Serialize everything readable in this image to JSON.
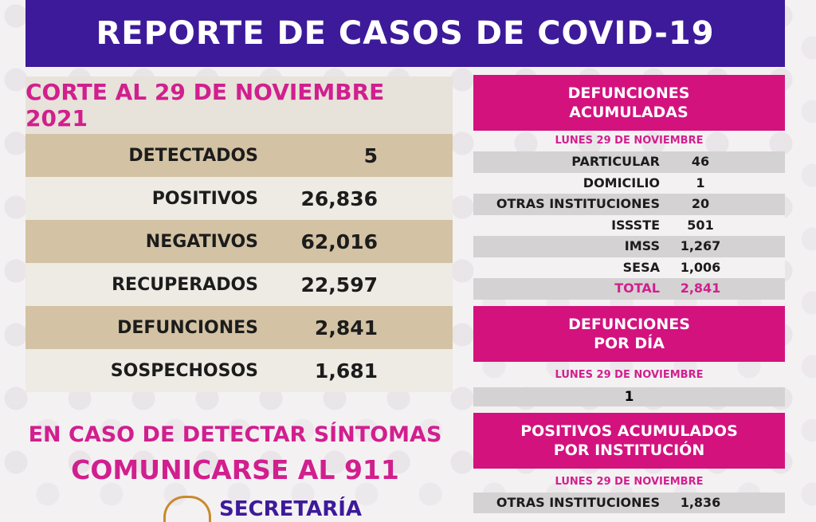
{
  "title": "REPORTE DE CASOS DE COVID-19",
  "corte": "CORTE AL 29 DE NOVIEMBRE 2021",
  "stats": [
    {
      "label": "DETECTADOS",
      "value": "5"
    },
    {
      "label": "POSITIVOS",
      "value": "26,836"
    },
    {
      "label": "NEGATIVOS",
      "value": "62,016"
    },
    {
      "label": "RECUPERADOS",
      "value": "22,597"
    },
    {
      "label": "DEFUNCIONES",
      "value": "2,841"
    },
    {
      "label": "SOSPECHOSOS",
      "value": "1,681"
    }
  ],
  "cta": {
    "line1": "EN CASO DE DETECTAR SÍNTOMAS",
    "line2": "COMUNICARSE AL 911"
  },
  "footer_logo_text": "SECRETARÍA",
  "defunciones_acumuladas": {
    "header": "DEFUNCIONES ACUMULADAS",
    "date": "LUNES 29 DE NOVIEMBRE",
    "rows": [
      {
        "label": "PARTICULAR",
        "value": "46"
      },
      {
        "label": "DOMICILIO",
        "value": "1"
      },
      {
        "label": "OTRAS INSTITUCIONES",
        "value": "20"
      },
      {
        "label": "ISSSTE",
        "value": "501"
      },
      {
        "label": "IMSS",
        "value": "1,267"
      },
      {
        "label": "SESA",
        "value": "1,006"
      },
      {
        "label": "TOTAL",
        "value": "2,841"
      }
    ]
  },
  "defunciones_dia": {
    "header": "DEFUNCIONES POR DÍA",
    "date": "LUNES 29 DE NOVIEMBRE",
    "value": "1"
  },
  "positivos_institucion": {
    "header": "POSITIVOS ACUMULADOS POR INSTITUCIÓN",
    "date": "LUNES 29 DE NOVIEMBRE",
    "rows": [
      {
        "label": "OTRAS INSTITUCIONES",
        "value": "1,836"
      }
    ]
  },
  "colors": {
    "banner": "#3d1a9a",
    "magenta": "#d3127e",
    "tan": "#d3c3a4"
  }
}
